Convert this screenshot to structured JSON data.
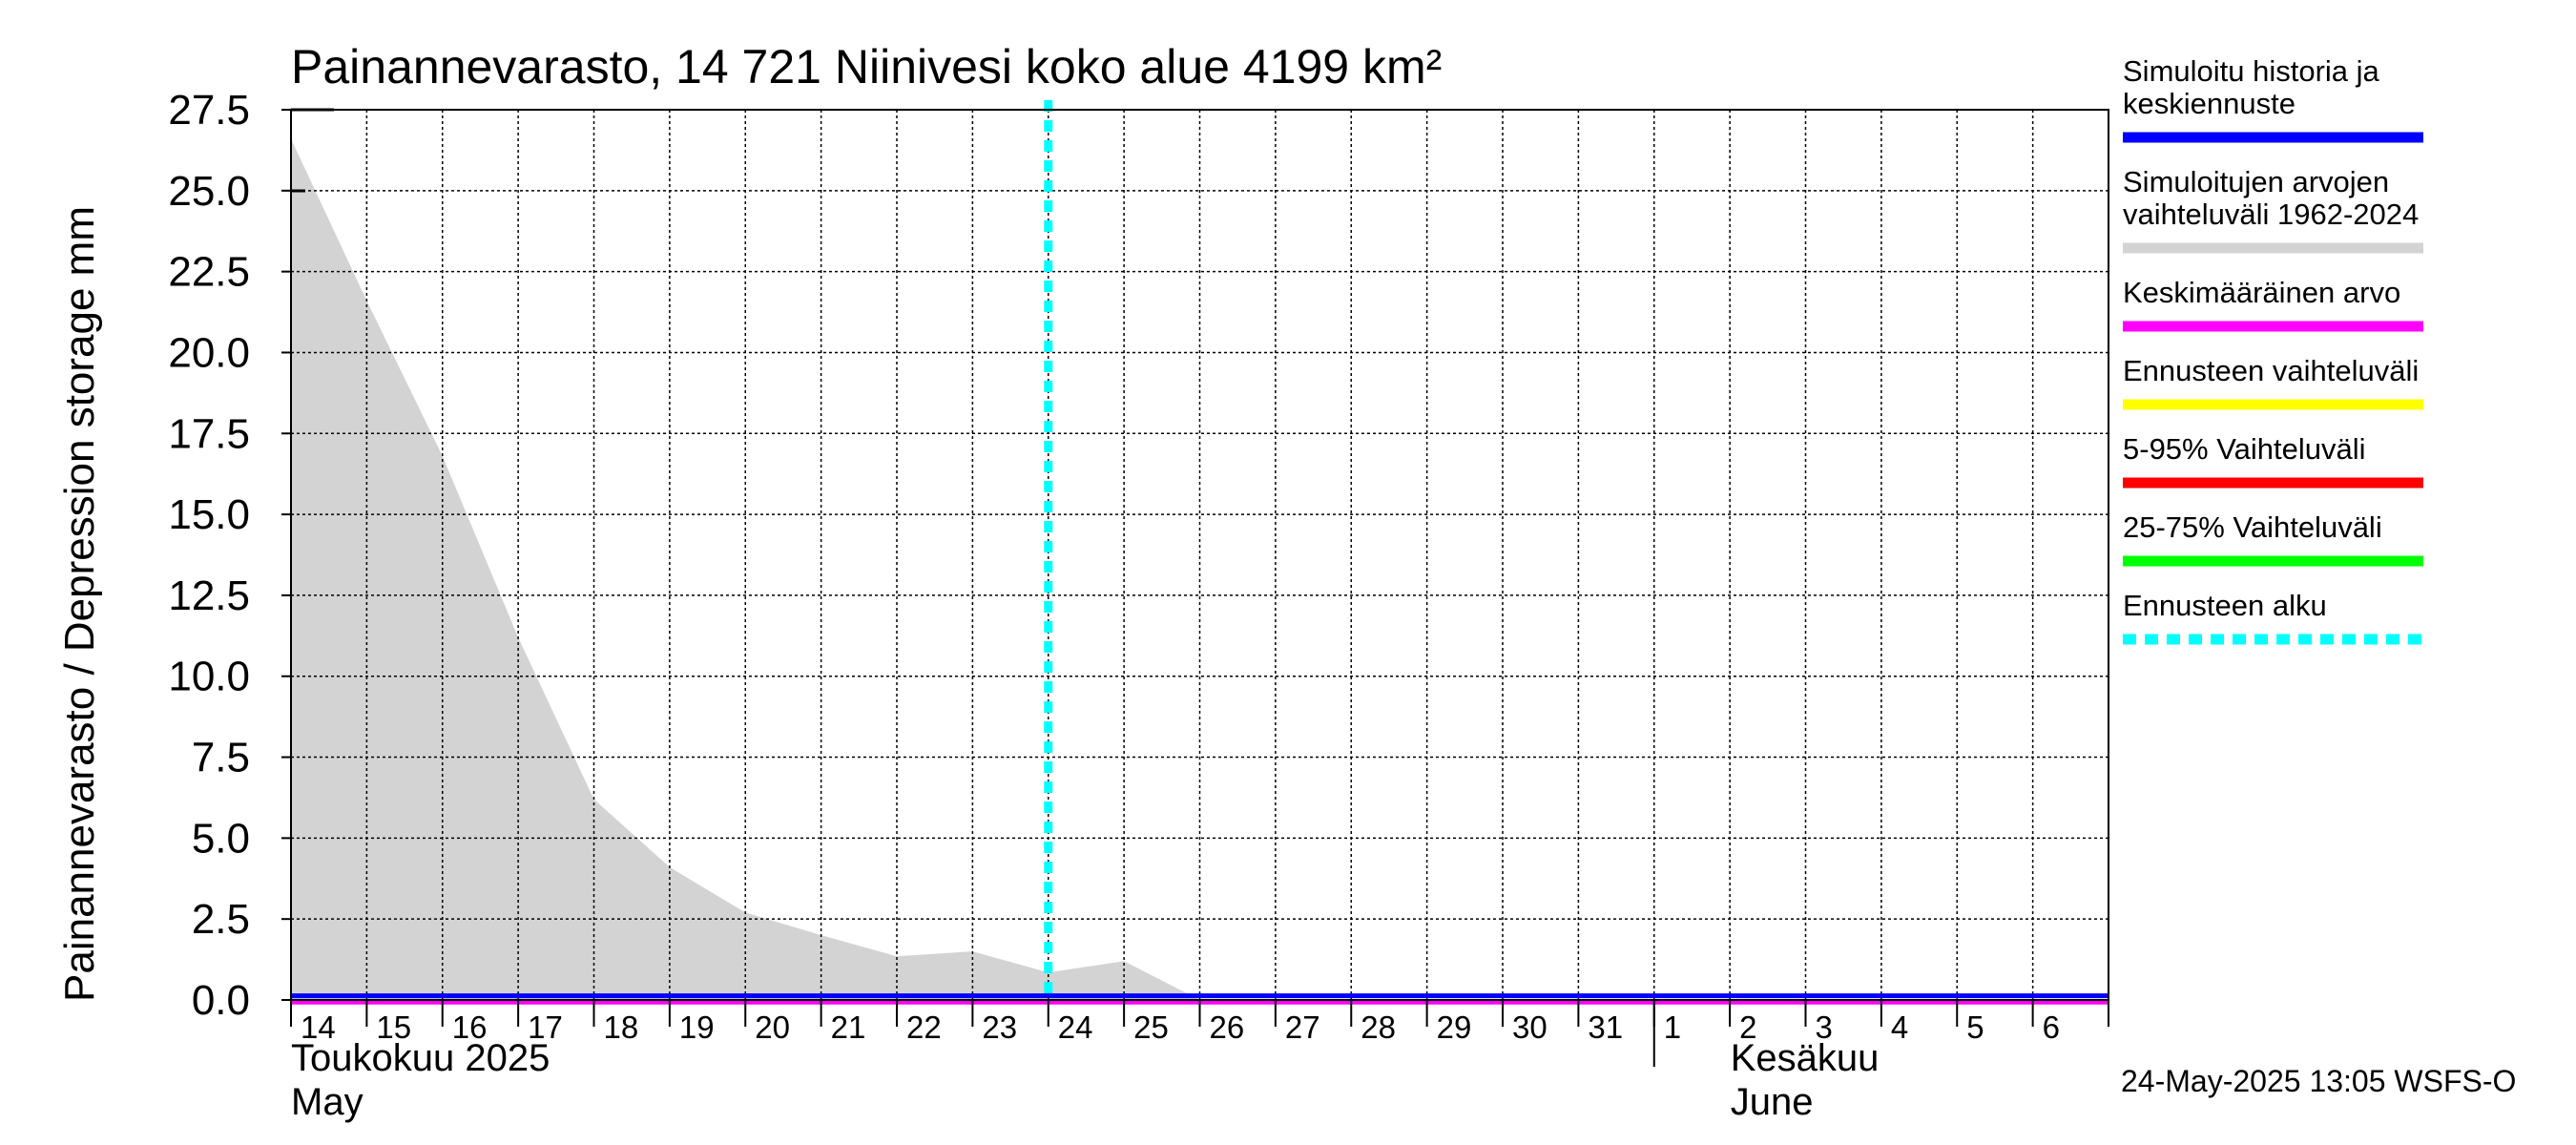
{
  "chart_data": {
    "type": "area",
    "title": "Painannevarasto, 14 721 Niinivesi koko alue 4199 km²",
    "ylabel": "Painannevarasto / Depression storage    mm",
    "ylim": [
      0,
      27.5
    ],
    "yticks": [
      "0.0",
      "2.5",
      "5.0",
      "7.5",
      "10.0",
      "12.5",
      "15.0",
      "17.5",
      "20.0",
      "22.5",
      "25.0",
      "27.5"
    ],
    "x_day_range": [
      14,
      38
    ],
    "xtick_labels": [
      "14",
      "15",
      "16",
      "17",
      "18",
      "19",
      "20",
      "21",
      "22",
      "23",
      "24",
      "25",
      "26",
      "27",
      "28",
      "29",
      "30",
      "31",
      "1",
      "2",
      "3",
      "4",
      "5",
      "6"
    ],
    "month_labels": [
      {
        "fi": "Toukokuu  2025",
        "en": "May",
        "day": 14
      },
      {
        "fi": "Kesäkuu",
        "en": "June",
        "day": 33
      }
    ],
    "series": [
      {
        "name": "Simuloitujen arvojen vaihteluväli 1962-2024",
        "color": "#d3d3d3",
        "x": [
          14,
          15,
          16,
          17,
          18,
          19,
          20,
          21,
          22,
          23,
          24,
          25,
          26,
          38
        ],
        "upper": [
          26.6,
          21.6,
          16.8,
          11.2,
          6.2,
          4.1,
          2.7,
          2.0,
          1.35,
          1.5,
          0.85,
          1.2,
          0,
          0
        ],
        "lower": [
          0,
          0,
          0,
          0,
          0,
          0,
          0,
          0,
          0,
          0,
          0,
          0,
          0,
          0
        ]
      },
      {
        "name": "Keskimääräinen arvo",
        "color": "#ff00ff",
        "x": [
          14,
          38
        ],
        "values": [
          0.05,
          0.05
        ]
      },
      {
        "name": "Simuloitu historia ja keskiennuste",
        "color": "#0000ff",
        "x": [
          14,
          38
        ],
        "values": [
          0.1,
          0.1
        ]
      }
    ],
    "forecast_start_day": 24,
    "legend": [
      {
        "label": "Simuloitu historia ja keskiennuste",
        "color": "#0000ff",
        "style": "solid"
      },
      {
        "label": "Simuloitujen arvojen vaihteluväli 1962-2024",
        "color": "#d3d3d3",
        "style": "solid"
      },
      {
        "label": "Keskimääräinen arvo",
        "color": "#ff00ff",
        "style": "solid"
      },
      {
        "label": "Ennusteen vaihteluväli",
        "color": "#ffff00",
        "style": "solid"
      },
      {
        "label": "5-95% Vaihteluväli",
        "color": "#ff0000",
        "style": "solid"
      },
      {
        "label": "25-75% Vaihteluväli",
        "color": "#00ff00",
        "style": "solid"
      },
      {
        "label": "Ennusteen alku",
        "color": "#00ffff",
        "style": "dashed"
      }
    ],
    "legend_position": "right",
    "footer": "24-May-2025 13:05 WSFS-O"
  }
}
